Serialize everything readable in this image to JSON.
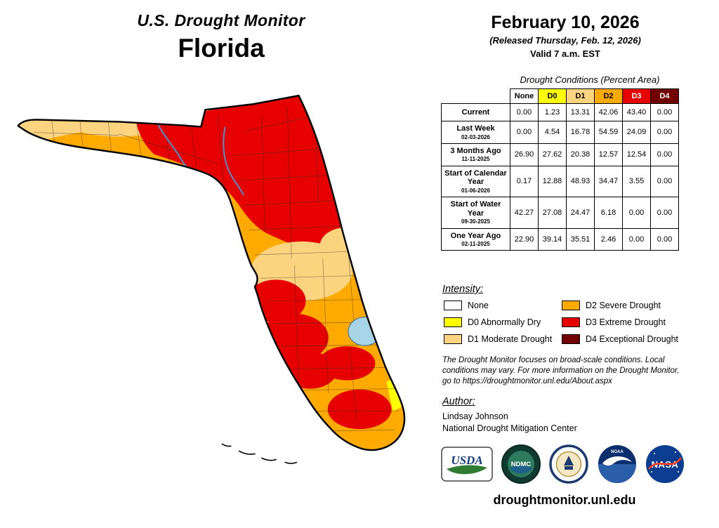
{
  "header": {
    "title": "U.S. Drought Monitor",
    "region": "Florida",
    "date": "February 10, 2026",
    "released": "(Released Thursday, Feb. 12, 2026)",
    "valid": "Valid 7 a.m. EST"
  },
  "table": {
    "caption": "Drought Conditions (Percent Area)",
    "columns": [
      {
        "label": "None",
        "color": "#FFFFFF",
        "text_color": "#000000"
      },
      {
        "label": "D0",
        "color": "#FFFF00",
        "text_color": "#000000"
      },
      {
        "label": "D1",
        "color": "#FCD37F",
        "text_color": "#000000"
      },
      {
        "label": "D2",
        "color": "#FFAA00",
        "text_color": "#000000"
      },
      {
        "label": "D3",
        "color": "#E60000",
        "text_color": "#FFFFFF"
      },
      {
        "label": "D4",
        "color": "#730000",
        "text_color": "#FFFFFF"
      }
    ],
    "rows": [
      {
        "label": "Current",
        "sub": "",
        "values": [
          "0.00",
          "1.23",
          "13.31",
          "42.06",
          "43.40",
          "0.00"
        ]
      },
      {
        "label": "Last Week",
        "sub": "02-03-2026",
        "values": [
          "0.00",
          "4.54",
          "16.78",
          "54.59",
          "24.09",
          "0.00"
        ]
      },
      {
        "label": "3 Months Ago",
        "sub": "11-11-2025",
        "values": [
          "26.90",
          "27.62",
          "20.38",
          "12.57",
          "12.54",
          "0.00"
        ]
      },
      {
        "label": "Start of Calendar Year",
        "sub": "01-06-2026",
        "values": [
          "0.17",
          "12.88",
          "48.93",
          "34.47",
          "3.55",
          "0.00"
        ]
      },
      {
        "label": "Start of Water Year",
        "sub": "09-30-2025",
        "values": [
          "42.27",
          "27.08",
          "24.47",
          "6.18",
          "0.00",
          "0.00"
        ]
      },
      {
        "label": "One Year Ago",
        "sub": "02-11-2025",
        "values": [
          "22.90",
          "39.14",
          "35.51",
          "2.46",
          "0.00",
          "0.00"
        ]
      }
    ]
  },
  "legend": {
    "title": "Intensity:",
    "items": [
      {
        "label": "None",
        "color": "#FFFFFF"
      },
      {
        "label": "D0 Abnormally Dry",
        "color": "#FFFF00"
      },
      {
        "label": "D1 Moderate Drought",
        "color": "#FCD37F"
      },
      {
        "label": "D2 Severe Drought",
        "color": "#FFAA00"
      },
      {
        "label": "D3 Extreme Drought",
        "color": "#E60000"
      },
      {
        "label": "D4 Exceptional Drought",
        "color": "#730000"
      }
    ]
  },
  "map": {
    "lake_color": "#A8D4E8",
    "river_color": "#4D90D0",
    "county_line_color": "#333333",
    "outline_color": "#000000"
  },
  "notes": {
    "text": "The Drought Monitor focuses on broad-scale conditions. Local conditions may vary. For more information on the Drought Monitor, go to https://droughtmonitor.unl.edu/About.aspx"
  },
  "author": {
    "title": "Author:",
    "name": "Lindsay Johnson",
    "org": "National Drought Mitigation Center"
  },
  "footer": {
    "logos": [
      "USDA",
      "NDMC",
      "DOC",
      "NOAA",
      "NASA"
    ],
    "url": "droughtmonitor.unl.edu"
  }
}
